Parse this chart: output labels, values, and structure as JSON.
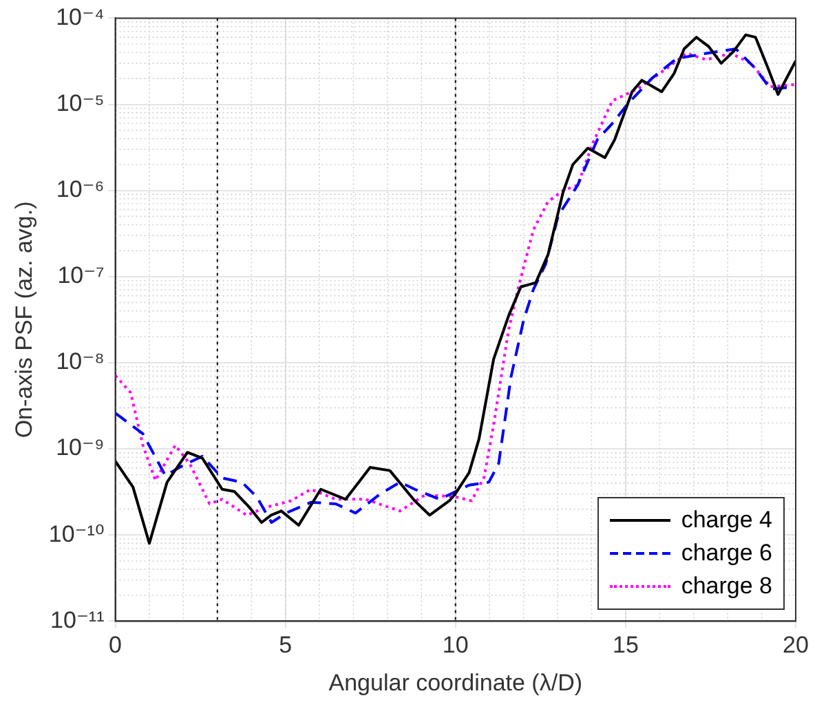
{
  "chart_data": {
    "type": "line",
    "xlabel": "Angular coordinate (λ/D)",
    "ylabel": "On-axis PSF (az. avg.)",
    "log": "y",
    "grid": true,
    "legend": "bottom right",
    "marker": "none",
    "xlim": [
      0,
      20
    ],
    "xticks": [
      0,
      5,
      10,
      15,
      20
    ],
    "ylim": [
      1e-11,
      0.0001
    ],
    "yticks": [
      {
        "value": 1e-11,
        "label": "10⁻¹¹"
      },
      {
        "value": 1e-10,
        "label": "10⁻¹⁰"
      },
      {
        "value": 1e-09,
        "label": "10⁻⁹"
      },
      {
        "value": 1e-08,
        "label": "10⁻⁸"
      },
      {
        "value": 1e-07,
        "label": "10⁻⁷"
      },
      {
        "value": 1e-06,
        "label": "10⁻⁶"
      },
      {
        "value": 1e-05,
        "label": "10⁻⁵"
      },
      {
        "value": 0.0001,
        "label": "10⁻⁴"
      }
    ],
    "ref_lines": [
      {
        "axis": "x",
        "value": 3,
        "color": "#000000",
        "line_style": "dotted"
      },
      {
        "axis": "x",
        "value": 10,
        "color": "#000000",
        "line_style": "dotted"
      }
    ],
    "series": [
      {
        "name": "charge 4",
        "color": "#000000",
        "line_style": "solid",
        "x": [
          0,
          0.52,
          1.0,
          1.52,
          2.12,
          2.56,
          3.14,
          3.5,
          3.94,
          4.3,
          4.58,
          4.88,
          5.39,
          6.04,
          6.77,
          7.49,
          8.07,
          8.8,
          9.24,
          9.82,
          9.99,
          10.4,
          10.69,
          11.12,
          11.56,
          11.92,
          12.36,
          12.72,
          13.16,
          13.45,
          13.89,
          14.39,
          14.68,
          15.19,
          15.48,
          16.06,
          16.43,
          16.72,
          17.08,
          17.44,
          17.81,
          18.17,
          18.53,
          18.82,
          19.19,
          19.48,
          20
        ],
        "values": [
          7.2e-10,
          3.6e-10,
          8e-11,
          4.1e-10,
          9.1e-10,
          7.8e-10,
          3.4e-10,
          3.2e-10,
          2.1e-10,
          1.4e-10,
          1.7e-10,
          1.9e-10,
          1.3e-10,
          3.4e-10,
          2.6e-10,
          6.1e-10,
          5.6e-10,
          2.5e-10,
          1.7e-10,
          2.5e-10,
          3e-10,
          5.3e-10,
          1.3e-09,
          1.1e-08,
          3.5e-08,
          7.6e-08,
          8.5e-08,
          1.8e-07,
          9.5e-07,
          2e-06,
          3.1e-06,
          2.4e-06,
          3.9e-06,
          1.4e-05,
          1.9e-05,
          1.4e-05,
          2.3e-05,
          4.4e-05,
          6e-05,
          4.7e-05,
          3e-05,
          4.1e-05,
          6.4e-05,
          6e-05,
          2.6e-05,
          1.3e-05,
          3.2e-05
        ]
      },
      {
        "name": "charge 6",
        "color": "#0000ff",
        "line_style": "dashed",
        "x": [
          0,
          0.81,
          1.47,
          1.98,
          2.56,
          3.14,
          3.72,
          4.15,
          4.59,
          5.02,
          5.75,
          6.48,
          7.06,
          7.79,
          8.37,
          8.8,
          9.53,
          10.4,
          10.98,
          11.27,
          11.63,
          12.0,
          12.29,
          12.65,
          13.02,
          13.59,
          14.17,
          14.61,
          15.05,
          15.77,
          16.5,
          17.37,
          18.24,
          18.82,
          19.26,
          20
        ],
        "values": [
          2.6e-09,
          1.5e-09,
          4.9e-10,
          6.4e-10,
          8.2e-10,
          4.6e-10,
          4.1e-10,
          2.8e-10,
          1.4e-10,
          1.8e-10,
          2.4e-10,
          2.3e-10,
          1.8e-10,
          3e-10,
          4.1e-10,
          3.4e-10,
          2.6e-10,
          3.8e-10,
          4.1e-10,
          6.8e-10,
          6.8e-09,
          3.1e-08,
          7.1e-08,
          1.4e-07,
          5.1e-07,
          1.15e-06,
          3.9e-06,
          6e-06,
          1e-05,
          2e-05,
          3.4e-05,
          3.9e-05,
          4.4e-05,
          2.6e-05,
          1.5e-05,
          1.6e-05
        ]
      },
      {
        "name": "charge 8",
        "color": "#ff00ff",
        "line_style": "dotted",
        "x": [
          0,
          0.45,
          0.81,
          1.18,
          1.76,
          2.19,
          2.77,
          3.14,
          3.86,
          4.44,
          5.17,
          5.75,
          6.48,
          7.35,
          8.37,
          9.09,
          9.96,
          10.47,
          10.84,
          11.12,
          11.56,
          11.85,
          12.29,
          12.72,
          13.16,
          13.59,
          14.03,
          14.61,
          15.34,
          16.2,
          16.79,
          17.37,
          18.1,
          18.68,
          19.26,
          20
        ],
        "values": [
          7.1e-09,
          4.5e-09,
          1.1e-09,
          4.3e-10,
          1.1e-09,
          6.7e-10,
          2.3e-10,
          2.6e-10,
          1.7e-10,
          2.1e-10,
          2.5e-10,
          3.4e-10,
          2.6e-10,
          2.6e-10,
          1.9e-10,
          2.9e-10,
          2.8e-10,
          2.5e-10,
          4.7e-10,
          1.9e-09,
          2.4e-08,
          7.6e-08,
          3.5e-07,
          7.4e-07,
          1e-06,
          1.15e-06,
          3.5e-06,
          1.1e-05,
          1.5e-05,
          2.6e-05,
          3.9e-05,
          3.3e-05,
          3.9e-05,
          3e-05,
          1.6e-05,
          1.7e-05
        ]
      }
    ]
  }
}
